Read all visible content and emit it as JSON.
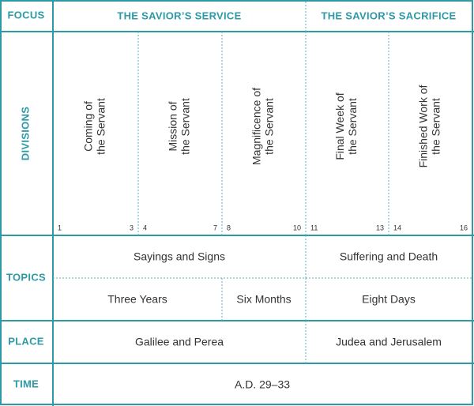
{
  "rows": {
    "focus": {
      "label": "FOCUS",
      "cells": [
        "THE SAVIOR’S SERVICE",
        "THE SAVIOR’S SACRIFICE"
      ]
    },
    "divisions": {
      "label": "DIVISIONS",
      "cells": [
        {
          "title": [
            "Coming of",
            "the Servant"
          ],
          "start": 1,
          "end": 3
        },
        {
          "title": [
            "Mission of",
            "the Servant"
          ],
          "start": 4,
          "end": 7
        },
        {
          "title": [
            "Magnificence of",
            "the Servant"
          ],
          "start": 8,
          "end": 10
        },
        {
          "title": [
            "Final Week of",
            "the Servant"
          ],
          "start": 11,
          "end": 13
        },
        {
          "title": [
            "Finished Work of",
            "the Servant"
          ],
          "start": 14,
          "end": 16
        }
      ]
    },
    "topics": {
      "label": "TOPICS",
      "first": [
        "Sayings and Signs",
        "Suffering and Death"
      ],
      "second": [
        "Three Years",
        "Six Months",
        "Eight Days"
      ]
    },
    "place": {
      "label": "PLACE",
      "cells": [
        "Galilee and Perea",
        "Judea and Jerusalem"
      ]
    },
    "time": {
      "label": "TIME",
      "cells": [
        "A.D. 29–33"
      ]
    }
  }
}
